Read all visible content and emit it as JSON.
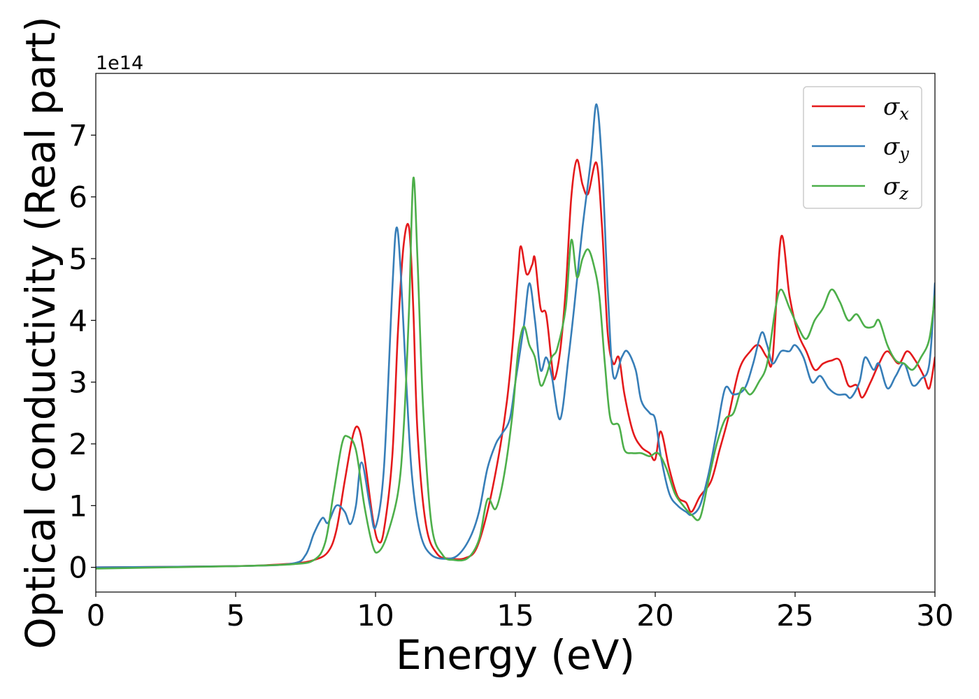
{
  "chart_data": {
    "type": "line",
    "xlabel": "Energy (eV)",
    "ylabel": "Optical conductivity (Real part)",
    "y_offset_label": "1e14",
    "xlim": [
      0,
      30
    ],
    "ylim": [
      -0.4,
      8.0
    ],
    "x_ticks": [
      "0",
      "5",
      "10",
      "15",
      "20",
      "25",
      "30"
    ],
    "y_ticks": [
      "0",
      "1",
      "2",
      "3",
      "4",
      "5",
      "6",
      "7"
    ],
    "legend_position": "top-right",
    "grid": false,
    "series": [
      {
        "name": "σx",
        "symbol": "σ",
        "subscript": "x",
        "color": "#e41a1c",
        "points": [
          [
            0,
            0.0
          ],
          [
            5,
            0.02
          ],
          [
            7,
            0.06
          ],
          [
            7.8,
            0.12
          ],
          [
            8.3,
            0.25
          ],
          [
            8.6,
            0.6
          ],
          [
            8.9,
            1.4
          ],
          [
            9.2,
            2.15
          ],
          [
            9.4,
            2.25
          ],
          [
            9.6,
            1.8
          ],
          [
            9.9,
            0.8
          ],
          [
            10.1,
            0.42
          ],
          [
            10.3,
            0.6
          ],
          [
            10.6,
            1.8
          ],
          [
            10.8,
            3.8
          ],
          [
            11.0,
            5.2
          ],
          [
            11.2,
            5.5
          ],
          [
            11.35,
            4.2
          ],
          [
            11.5,
            2.2
          ],
          [
            11.8,
            0.7
          ],
          [
            12.2,
            0.22
          ],
          [
            12.7,
            0.14
          ],
          [
            13.2,
            0.15
          ],
          [
            13.6,
            0.3
          ],
          [
            14.0,
            0.9
          ],
          [
            14.4,
            1.8
          ],
          [
            14.7,
            2.7
          ],
          [
            14.9,
            3.6
          ],
          [
            15.1,
            4.8
          ],
          [
            15.2,
            5.2
          ],
          [
            15.4,
            4.75
          ],
          [
            15.6,
            4.9
          ],
          [
            15.7,
            5.0
          ],
          [
            15.9,
            4.2
          ],
          [
            16.1,
            4.1
          ],
          [
            16.3,
            3.3
          ],
          [
            16.4,
            3.05
          ],
          [
            16.6,
            3.5
          ],
          [
            16.8,
            4.5
          ],
          [
            17.0,
            6.0
          ],
          [
            17.2,
            6.6
          ],
          [
            17.4,
            6.2
          ],
          [
            17.6,
            6.05
          ],
          [
            17.9,
            6.55
          ],
          [
            18.1,
            5.5
          ],
          [
            18.3,
            3.8
          ],
          [
            18.5,
            3.3
          ],
          [
            18.7,
            3.4
          ],
          [
            18.9,
            2.8
          ],
          [
            19.2,
            2.2
          ],
          [
            19.5,
            1.95
          ],
          [
            19.8,
            1.85
          ],
          [
            20.0,
            1.75
          ],
          [
            20.2,
            2.2
          ],
          [
            20.5,
            1.6
          ],
          [
            20.8,
            1.15
          ],
          [
            21.1,
            1.05
          ],
          [
            21.3,
            0.9
          ],
          [
            21.6,
            1.15
          ],
          [
            22.0,
            1.4
          ],
          [
            22.3,
            1.9
          ],
          [
            22.6,
            2.4
          ],
          [
            23.0,
            3.2
          ],
          [
            23.4,
            3.5
          ],
          [
            23.7,
            3.6
          ],
          [
            24.0,
            3.4
          ],
          [
            24.2,
            3.4
          ],
          [
            24.5,
            5.35
          ],
          [
            24.8,
            4.4
          ],
          [
            25.1,
            3.8
          ],
          [
            25.4,
            3.5
          ],
          [
            25.7,
            3.2
          ],
          [
            26.0,
            3.3
          ],
          [
            26.3,
            3.35
          ],
          [
            26.6,
            3.35
          ],
          [
            26.9,
            2.95
          ],
          [
            27.2,
            2.95
          ],
          [
            27.4,
            2.75
          ],
          [
            27.7,
            3.0
          ],
          [
            28.0,
            3.3
          ],
          [
            28.3,
            3.5
          ],
          [
            28.7,
            3.3
          ],
          [
            29.0,
            3.5
          ],
          [
            29.3,
            3.35
          ],
          [
            29.6,
            3.1
          ],
          [
            29.8,
            2.9
          ],
          [
            30.0,
            3.4
          ]
        ]
      },
      {
        "name": "σy",
        "symbol": "σ",
        "subscript": "y",
        "color": "#377eb8",
        "points": [
          [
            0,
            0.0
          ],
          [
            5,
            0.02
          ],
          [
            7,
            0.06
          ],
          [
            7.5,
            0.2
          ],
          [
            7.8,
            0.55
          ],
          [
            8.1,
            0.8
          ],
          [
            8.3,
            0.72
          ],
          [
            8.6,
            1.0
          ],
          [
            8.9,
            0.9
          ],
          [
            9.1,
            0.7
          ],
          [
            9.3,
            1.0
          ],
          [
            9.5,
            1.7
          ],
          [
            9.8,
            1.0
          ],
          [
            10.0,
            0.65
          ],
          [
            10.3,
            1.6
          ],
          [
            10.6,
            4.5
          ],
          [
            10.75,
            5.5
          ],
          [
            10.9,
            4.8
          ],
          [
            11.1,
            3.0
          ],
          [
            11.3,
            1.5
          ],
          [
            11.6,
            0.55
          ],
          [
            12.0,
            0.2
          ],
          [
            12.6,
            0.14
          ],
          [
            13.0,
            0.22
          ],
          [
            13.4,
            0.5
          ],
          [
            13.7,
            0.9
          ],
          [
            14.0,
            1.6
          ],
          [
            14.3,
            2.0
          ],
          [
            14.5,
            2.15
          ],
          [
            14.8,
            2.4
          ],
          [
            15.0,
            3.0
          ],
          [
            15.3,
            3.9
          ],
          [
            15.5,
            4.6
          ],
          [
            15.7,
            4.0
          ],
          [
            15.9,
            3.2
          ],
          [
            16.1,
            3.4
          ],
          [
            16.3,
            3.1
          ],
          [
            16.6,
            2.4
          ],
          [
            16.9,
            3.4
          ],
          [
            17.1,
            4.2
          ],
          [
            17.4,
            5.5
          ],
          [
            17.7,
            6.6
          ],
          [
            17.9,
            7.5
          ],
          [
            18.1,
            6.5
          ],
          [
            18.3,
            4.5
          ],
          [
            18.5,
            3.1
          ],
          [
            18.8,
            3.4
          ],
          [
            19.0,
            3.5
          ],
          [
            19.3,
            3.2
          ],
          [
            19.5,
            2.7
          ],
          [
            19.8,
            2.5
          ],
          [
            20.0,
            2.4
          ],
          [
            20.2,
            1.8
          ],
          [
            20.5,
            1.2
          ],
          [
            20.8,
            1.0
          ],
          [
            21.1,
            0.9
          ],
          [
            21.3,
            0.85
          ],
          [
            21.6,
            1.0
          ],
          [
            21.9,
            1.5
          ],
          [
            22.2,
            2.2
          ],
          [
            22.5,
            2.9
          ],
          [
            22.8,
            2.8
          ],
          [
            23.2,
            2.9
          ],
          [
            23.5,
            3.3
          ],
          [
            23.8,
            3.8
          ],
          [
            24.0,
            3.6
          ],
          [
            24.2,
            3.3
          ],
          [
            24.5,
            3.5
          ],
          [
            24.8,
            3.5
          ],
          [
            25.0,
            3.6
          ],
          [
            25.3,
            3.4
          ],
          [
            25.6,
            3.0
          ],
          [
            25.9,
            3.1
          ],
          [
            26.2,
            2.9
          ],
          [
            26.5,
            2.8
          ],
          [
            26.8,
            2.8
          ],
          [
            27.0,
            2.75
          ],
          [
            27.3,
            3.0
          ],
          [
            27.5,
            3.4
          ],
          [
            27.8,
            3.2
          ],
          [
            28.0,
            3.3
          ],
          [
            28.3,
            2.9
          ],
          [
            28.6,
            3.1
          ],
          [
            28.9,
            3.3
          ],
          [
            29.2,
            2.95
          ],
          [
            29.5,
            3.05
          ],
          [
            29.8,
            3.3
          ],
          [
            30.0,
            4.6
          ]
        ]
      },
      {
        "name": "σz",
        "symbol": "σ",
        "subscript": "z",
        "color": "#4daf4a",
        "points": [
          [
            0,
            -0.02
          ],
          [
            5,
            0.02
          ],
          [
            7,
            0.05
          ],
          [
            7.8,
            0.12
          ],
          [
            8.2,
            0.4
          ],
          [
            8.5,
            1.2
          ],
          [
            8.8,
            2.0
          ],
          [
            9.0,
            2.12
          ],
          [
            9.3,
            1.9
          ],
          [
            9.6,
            1.0
          ],
          [
            9.9,
            0.35
          ],
          [
            10.1,
            0.25
          ],
          [
            10.4,
            0.5
          ],
          [
            10.8,
            1.2
          ],
          [
            11.0,
            2.2
          ],
          [
            11.2,
            4.2
          ],
          [
            11.35,
            6.3
          ],
          [
            11.5,
            5.0
          ],
          [
            11.7,
            2.6
          ],
          [
            12.0,
            0.7
          ],
          [
            12.4,
            0.2
          ],
          [
            12.8,
            0.12
          ],
          [
            13.3,
            0.15
          ],
          [
            13.7,
            0.45
          ],
          [
            14.0,
            1.1
          ],
          [
            14.3,
            0.95
          ],
          [
            14.6,
            1.5
          ],
          [
            14.9,
            2.5
          ],
          [
            15.1,
            3.5
          ],
          [
            15.3,
            3.9
          ],
          [
            15.5,
            3.6
          ],
          [
            15.7,
            3.4
          ],
          [
            15.9,
            2.95
          ],
          [
            16.1,
            3.1
          ],
          [
            16.3,
            3.4
          ],
          [
            16.5,
            3.55
          ],
          [
            16.8,
            4.2
          ],
          [
            17.0,
            5.3
          ],
          [
            17.2,
            4.7
          ],
          [
            17.4,
            5.0
          ],
          [
            17.6,
            5.15
          ],
          [
            17.8,
            4.9
          ],
          [
            18.0,
            4.4
          ],
          [
            18.2,
            3.3
          ],
          [
            18.4,
            2.4
          ],
          [
            18.7,
            2.3
          ],
          [
            18.9,
            1.9
          ],
          [
            19.2,
            1.85
          ],
          [
            19.5,
            1.85
          ],
          [
            19.8,
            1.8
          ],
          [
            20.1,
            1.85
          ],
          [
            20.4,
            1.6
          ],
          [
            20.7,
            1.2
          ],
          [
            21.0,
            1.0
          ],
          [
            21.3,
            0.85
          ],
          [
            21.6,
            0.8
          ],
          [
            21.9,
            1.4
          ],
          [
            22.2,
            2.0
          ],
          [
            22.5,
            2.4
          ],
          [
            22.8,
            2.5
          ],
          [
            23.1,
            2.9
          ],
          [
            23.4,
            2.8
          ],
          [
            23.7,
            3.0
          ],
          [
            24.0,
            3.3
          ],
          [
            24.3,
            4.2
          ],
          [
            24.5,
            4.5
          ],
          [
            24.8,
            4.2
          ],
          [
            25.1,
            3.9
          ],
          [
            25.4,
            3.7
          ],
          [
            25.7,
            4.0
          ],
          [
            26.0,
            4.2
          ],
          [
            26.3,
            4.5
          ],
          [
            26.6,
            4.3
          ],
          [
            26.9,
            4.0
          ],
          [
            27.2,
            4.1
          ],
          [
            27.5,
            3.9
          ],
          [
            27.8,
            3.9
          ],
          [
            28.0,
            4.0
          ],
          [
            28.3,
            3.6
          ],
          [
            28.6,
            3.35
          ],
          [
            28.9,
            3.3
          ],
          [
            29.2,
            3.2
          ],
          [
            29.5,
            3.4
          ],
          [
            29.8,
            3.7
          ],
          [
            30.0,
            4.4
          ]
        ]
      }
    ]
  }
}
